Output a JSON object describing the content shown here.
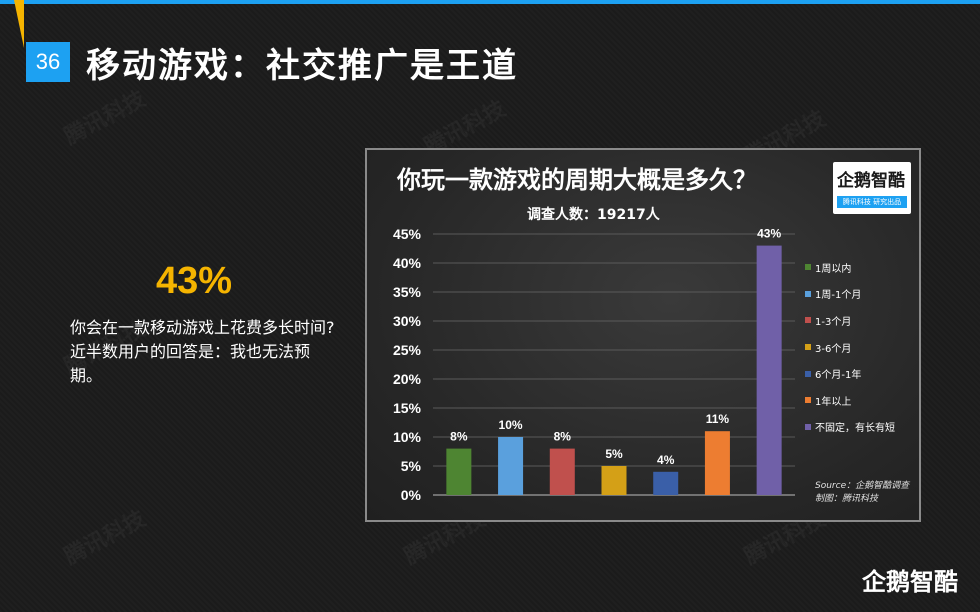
{
  "page": {
    "number": "36",
    "title": "移动游戏：社交推广是王道",
    "big_stat": "43%",
    "description": [
      "你会在一款移动游戏上花费多长时间?",
      "近半数用户的回答是：我也无法预期。"
    ],
    "brand": "企鹅智酷",
    "watermark_text": "腾讯科技"
  },
  "logo": {
    "name": "企鹅智酷",
    "tagline": "腾讯科技  研究出品"
  },
  "source": {
    "line1": "Source：企鹅智酷调查",
    "line2": "制图：腾讯科技"
  },
  "colors": {
    "accent": "#1da1f2",
    "highlight": "#f5b400"
  },
  "chart_data": {
    "type": "bar",
    "title": "你玩一款游戏的周期大概是多久？",
    "subtitle": "调查人数：19217人",
    "categories": [
      "1周以内",
      "1周-1个月",
      "1-3个月",
      "3-6个月",
      "6个月-1年",
      "1年以上",
      "不固定，有长有短"
    ],
    "values": [
      8,
      10,
      8,
      5,
      4,
      11,
      43
    ],
    "value_labels": [
      "8%",
      "10%",
      "8%",
      "5%",
      "4%",
      "11%",
      "43%"
    ],
    "colors": [
      "#4e8532",
      "#5aa0dd",
      "#c0504d",
      "#d4a017",
      "#3a5fa8",
      "#ed7d31",
      "#7060a8"
    ],
    "ylim": [
      0,
      45
    ],
    "yticks": [
      "0%",
      "5%",
      "10%",
      "15%",
      "20%",
      "25%",
      "30%",
      "35%",
      "40%",
      "45%"
    ],
    "grid": true,
    "legend": "right"
  }
}
